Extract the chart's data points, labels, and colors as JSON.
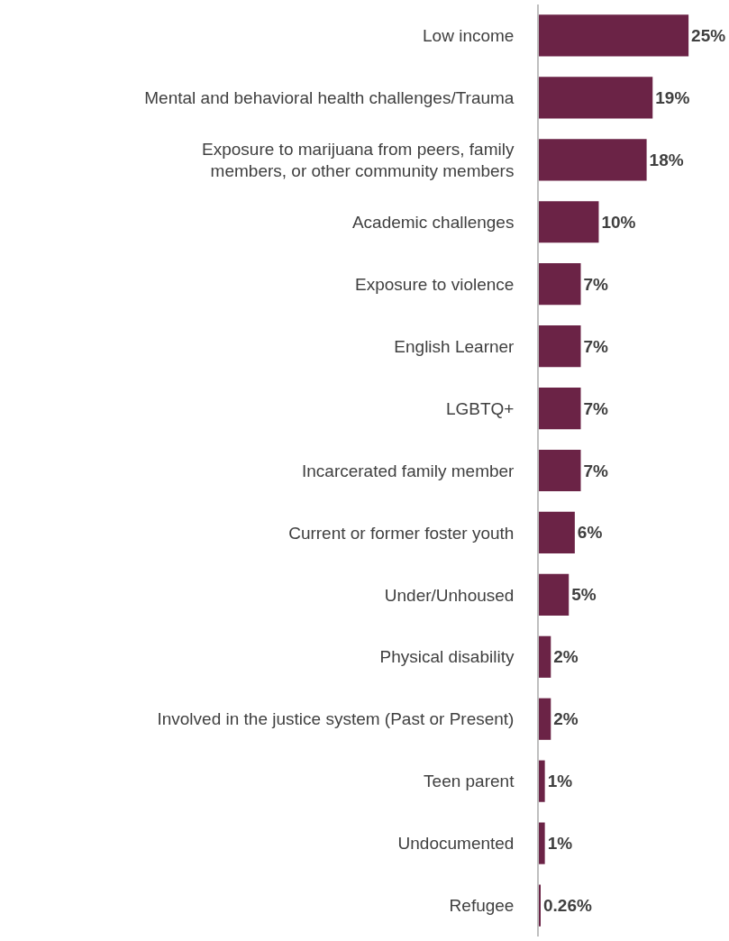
{
  "chart_data": {
    "type": "bar",
    "orientation": "horizontal",
    "categories": [
      "Low income",
      "Mental and behavioral health challenges/Trauma",
      "Exposure to marijuana from peers, family members, or other community members",
      "Academic challenges",
      "Exposure to violence",
      "English Learner",
      "LGBTQ+",
      "Incarcerated family member",
      "Current or former foster youth",
      "Under/Unhoused",
      "Physical disability",
      "Involved in the justice system (Past or Present)",
      "Teen parent",
      "Undocumented",
      "Refugee"
    ],
    "values": [
      25,
      19,
      18,
      10,
      7,
      7,
      7,
      7,
      6,
      5,
      2,
      2,
      1,
      1,
      0.26
    ],
    "value_labels": [
      "25%",
      "19%",
      "18%",
      "10%",
      "7%",
      "7%",
      "7%",
      "7%",
      "6%",
      "5%",
      "2%",
      "2%",
      "1%",
      "1%",
      "0.26%"
    ],
    "color": "#6b2346"
  }
}
